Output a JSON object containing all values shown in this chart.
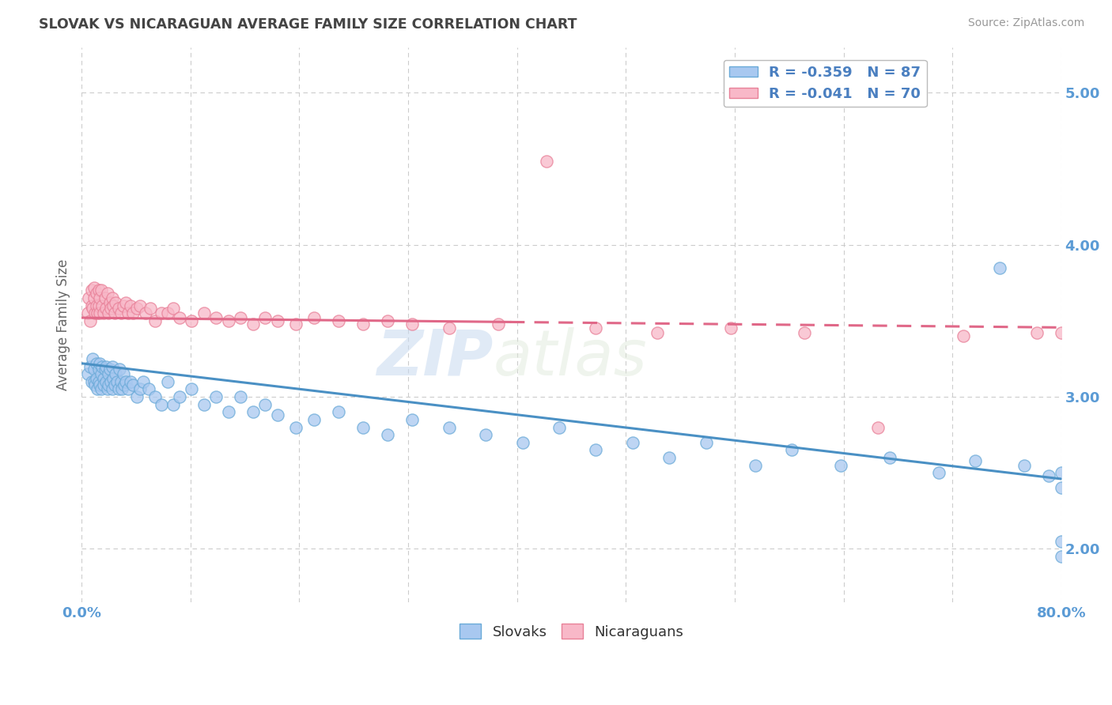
{
  "title": "SLOVAK VS NICARAGUAN AVERAGE FAMILY SIZE CORRELATION CHART",
  "source_text": "Source: ZipAtlas.com",
  "ylabel": "Average Family Size",
  "yticks": [
    2.0,
    3.0,
    4.0,
    5.0
  ],
  "xlim": [
    0.0,
    0.8
  ],
  "ylim": [
    1.65,
    5.3
  ],
  "slovak_color": "#a8c8f0",
  "slovak_edge_color": "#6aaad8",
  "nicaraguan_color": "#f8b8c8",
  "nicaraguan_edge_color": "#e88098",
  "slovak_line_color": "#4a90c4",
  "nicaraguan_line_color": "#e06888",
  "slovak_R": -0.359,
  "slovak_N": 87,
  "nicaraguan_R": -0.041,
  "nicaraguan_N": 70,
  "watermark_zip": "ZIP",
  "watermark_atlas": "atlas",
  "background_color": "#ffffff",
  "grid_color": "#cccccc",
  "title_color": "#444444",
  "axis_label_color": "#666666",
  "tick_label_color": "#5b9bd5",
  "legend_label_color": "#4a7fc0",
  "slovak_line_intercept": 3.22,
  "slovak_line_slope": -0.95,
  "nicaraguan_line_intercept": 3.52,
  "nicaraguan_line_slope": -0.08,
  "slovak_x": [
    0.005,
    0.007,
    0.008,
    0.009,
    0.01,
    0.01,
    0.011,
    0.012,
    0.012,
    0.013,
    0.014,
    0.014,
    0.015,
    0.015,
    0.016,
    0.016,
    0.017,
    0.018,
    0.018,
    0.019,
    0.02,
    0.02,
    0.021,
    0.022,
    0.022,
    0.023,
    0.024,
    0.025,
    0.025,
    0.026,
    0.027,
    0.028,
    0.029,
    0.03,
    0.031,
    0.032,
    0.033,
    0.034,
    0.035,
    0.036,
    0.038,
    0.04,
    0.042,
    0.045,
    0.048,
    0.05,
    0.055,
    0.06,
    0.065,
    0.07,
    0.075,
    0.08,
    0.09,
    0.1,
    0.11,
    0.12,
    0.13,
    0.14,
    0.15,
    0.16,
    0.175,
    0.19,
    0.21,
    0.23,
    0.25,
    0.27,
    0.3,
    0.33,
    0.36,
    0.39,
    0.42,
    0.45,
    0.48,
    0.51,
    0.55,
    0.58,
    0.62,
    0.66,
    0.7,
    0.73,
    0.75,
    0.77,
    0.79,
    0.8,
    0.8,
    0.8,
    0.8
  ],
  "slovak_y": [
    3.15,
    3.2,
    3.1,
    3.25,
    3.1,
    3.18,
    3.08,
    3.22,
    3.12,
    3.05,
    3.18,
    3.1,
    3.22,
    3.08,
    3.15,
    3.05,
    3.2,
    3.12,
    3.08,
    3.18,
    3.1,
    3.2,
    3.05,
    3.15,
    3.08,
    3.18,
    3.1,
    3.05,
    3.2,
    3.12,
    3.08,
    3.15,
    3.1,
    3.05,
    3.18,
    3.1,
    3.05,
    3.15,
    3.08,
    3.1,
    3.05,
    3.1,
    3.08,
    3.0,
    3.05,
    3.1,
    3.05,
    3.0,
    2.95,
    3.1,
    2.95,
    3.0,
    3.05,
    2.95,
    3.0,
    2.9,
    3.0,
    2.9,
    2.95,
    2.88,
    2.8,
    2.85,
    2.9,
    2.8,
    2.75,
    2.85,
    2.8,
    2.75,
    2.7,
    2.8,
    2.65,
    2.7,
    2.6,
    2.7,
    2.55,
    2.65,
    2.55,
    2.6,
    2.5,
    2.58,
    3.85,
    2.55,
    2.48,
    2.4,
    1.95,
    2.05,
    2.5
  ],
  "nicaraguan_x": [
    0.005,
    0.006,
    0.007,
    0.008,
    0.008,
    0.009,
    0.01,
    0.01,
    0.011,
    0.012,
    0.012,
    0.013,
    0.014,
    0.014,
    0.015,
    0.015,
    0.016,
    0.017,
    0.018,
    0.019,
    0.02,
    0.021,
    0.022,
    0.023,
    0.024,
    0.025,
    0.026,
    0.027,
    0.028,
    0.03,
    0.032,
    0.034,
    0.036,
    0.038,
    0.04,
    0.042,
    0.045,
    0.048,
    0.052,
    0.056,
    0.06,
    0.065,
    0.07,
    0.075,
    0.08,
    0.09,
    0.1,
    0.11,
    0.12,
    0.13,
    0.14,
    0.15,
    0.16,
    0.175,
    0.19,
    0.21,
    0.23,
    0.25,
    0.27,
    0.3,
    0.34,
    0.38,
    0.42,
    0.47,
    0.53,
    0.59,
    0.65,
    0.72,
    0.78,
    0.8
  ],
  "nicaraguan_y": [
    3.55,
    3.65,
    3.5,
    3.7,
    3.6,
    3.58,
    3.65,
    3.72,
    3.55,
    3.6,
    3.68,
    3.55,
    3.7,
    3.6,
    3.65,
    3.55,
    3.7,
    3.6,
    3.55,
    3.65,
    3.58,
    3.68,
    3.55,
    3.62,
    3.58,
    3.65,
    3.6,
    3.55,
    3.62,
    3.58,
    3.55,
    3.6,
    3.62,
    3.55,
    3.6,
    3.55,
    3.58,
    3.6,
    3.55,
    3.58,
    3.5,
    3.55,
    3.55,
    3.58,
    3.52,
    3.5,
    3.55,
    3.52,
    3.5,
    3.52,
    3.48,
    3.52,
    3.5,
    3.48,
    3.52,
    3.5,
    3.48,
    3.5,
    3.48,
    3.45,
    3.48,
    4.55,
    3.45,
    3.42,
    3.45,
    3.42,
    2.8,
    3.4,
    3.42,
    3.42
  ]
}
